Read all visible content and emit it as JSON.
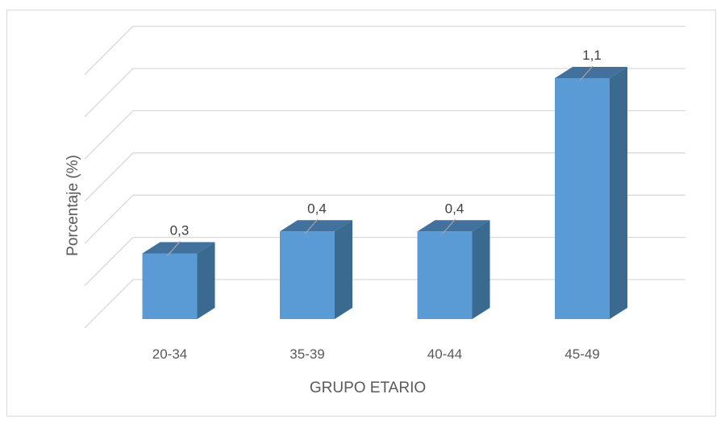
{
  "chart_data": {
    "type": "bar",
    "style": "3d-column",
    "categories": [
      "20-34",
      "35-39",
      "40-44",
      "45-49"
    ],
    "values": [
      0.3,
      0.4,
      0.4,
      1.1
    ],
    "data_labels": [
      "0,3",
      "0,4",
      "0,4",
      "1,1"
    ],
    "title": "",
    "xlabel": "GRUPO ETARIO",
    "ylabel": "Porcentaje (%)",
    "ylim": [
      0,
      1.2
    ],
    "grid": true,
    "legend": "none",
    "colors": {
      "front": "#5b9bd5",
      "side": "#3a6a8f",
      "top": "#41719c",
      "grid": "#d9d9d9",
      "frame": "#d9d9d9"
    }
  }
}
